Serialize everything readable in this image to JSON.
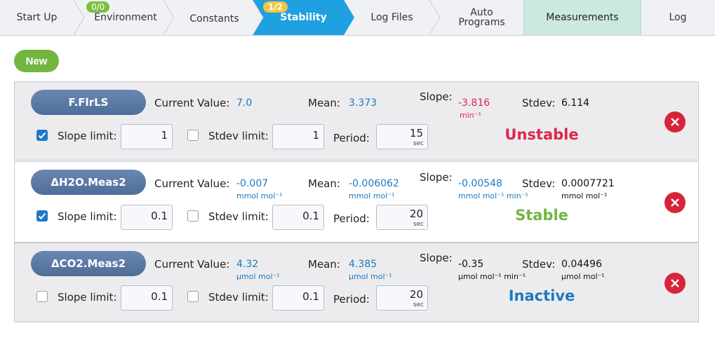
{
  "tabs": [
    {
      "label": "Start Up",
      "badge": ""
    },
    {
      "label": "Environment",
      "badge": "0/0"
    },
    {
      "label": "Constants",
      "badge": ""
    },
    {
      "label": "Stability",
      "badge": "1/2"
    },
    {
      "label": "Log Files",
      "badge": ""
    },
    {
      "label": "Auto",
      "label2": "Programs",
      "badge": ""
    },
    {
      "label": "Measurements",
      "badge": ""
    },
    {
      "label": "Log",
      "badge": ""
    }
  ],
  "new_label": "New",
  "labels": {
    "current_value": "Current Value:",
    "mean": "Mean:",
    "slope": "Slope:",
    "stdev": "Stdev:",
    "slope_limit": "Slope limit:",
    "stdev_limit": "Stdev limit:",
    "period": "Period:",
    "sec": "sec"
  },
  "rows": [
    {
      "name": "F.FlrLS",
      "current_value": "7.0",
      "current_unit": "",
      "mean": "3.373",
      "mean_unit": "",
      "slope": "-3.816",
      "slope_unit": "min⁻¹",
      "stdev": "6.114",
      "stdev_unit": "",
      "slope_limit_checked": true,
      "slope_limit": "1",
      "stdev_limit_checked": false,
      "stdev_limit": "1",
      "period": "15",
      "status": "Unstable"
    },
    {
      "name": "ΔH2O.Meas2",
      "current_value": "-0.007",
      "current_unit": "mmol mol⁻¹",
      "mean": "-0.006062",
      "mean_unit": "mmol mol⁻¹",
      "slope": "-0.00548",
      "slope_unit": "mmol mol⁻¹ min⁻¹",
      "stdev": "0.0007721",
      "stdev_unit": "mmol mol⁻¹",
      "slope_limit_checked": true,
      "slope_limit": "0.1",
      "stdev_limit_checked": false,
      "stdev_limit": "0.1",
      "period": "20",
      "status": "Stable"
    },
    {
      "name": "ΔCO2.Meas2",
      "current_value": "4.32",
      "current_unit": "µmol mol⁻¹",
      "mean": "4.385",
      "mean_unit": "µmol mol⁻¹",
      "slope": "-0.35",
      "slope_unit": "µmol mol⁻¹ min⁻¹",
      "stdev": "0.04496",
      "stdev_unit": "µmol mol⁻¹",
      "slope_limit_checked": false,
      "slope_limit": "0.1",
      "stdev_limit_checked": false,
      "stdev_limit": "0.1",
      "period": "20",
      "status": "Inactive"
    }
  ],
  "colors": {
    "active_tab": "#1fa0e0",
    "unstable": "#e0264b",
    "stable": "#74b43f",
    "inactive": "#1d79bf",
    "delete": "#d8243a"
  }
}
